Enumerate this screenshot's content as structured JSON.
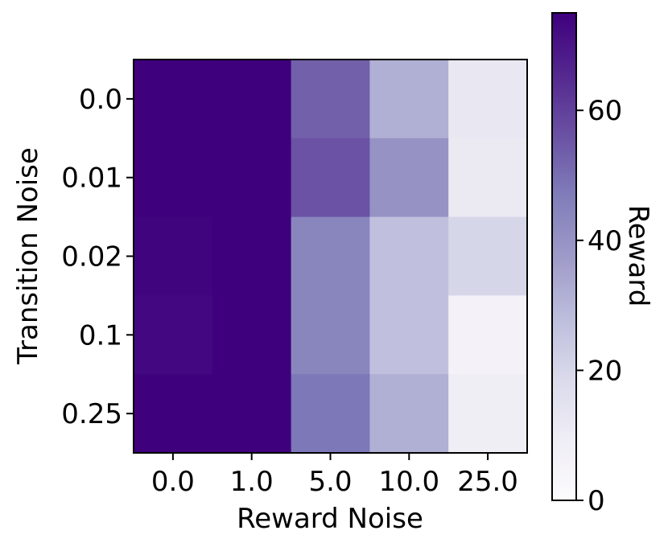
{
  "chart_data": {
    "type": "heatmap",
    "title": "",
    "xlabel": "Reward Noise",
    "ylabel": "Transition Noise",
    "x_categories": [
      "0.0",
      "1.0",
      "5.0",
      "10.0",
      "25.0"
    ],
    "y_categories": [
      "0.0",
      "0.01",
      "0.02",
      "0.1",
      "0.25"
    ],
    "values": [
      [
        75,
        75,
        53,
        32,
        12
      ],
      [
        75,
        75,
        56,
        40,
        11
      ],
      [
        74,
        75,
        44,
        27,
        20
      ],
      [
        73,
        75,
        44,
        27,
        6
      ],
      [
        75,
        75,
        48,
        32,
        9
      ]
    ],
    "colormap": "Purples",
    "vmin": 0,
    "vmax": 75,
    "colorbar": {
      "label": "Reward",
      "ticks": [
        0,
        20,
        40,
        60
      ],
      "tick_labels": [
        "0",
        "20",
        "40",
        "60"
      ]
    },
    "colors": {
      "low": "#fcfbfd",
      "high": "#3f007d"
    }
  }
}
